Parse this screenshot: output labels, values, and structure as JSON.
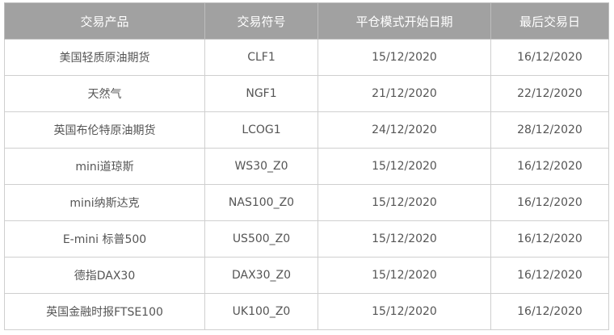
{
  "table": {
    "headers": [
      "交易产品",
      "交易符号",
      "平仓模式开始日期",
      "最后交易日"
    ],
    "rows": [
      [
        "美国轻质原油期货",
        "CLF1",
        "15/12/2020",
        "16/12/2020"
      ],
      [
        "天然气",
        "NGF1",
        "21/12/2020",
        "22/12/2020"
      ],
      [
        "英国布伦特原油期货",
        "LCOG1",
        "24/12/2020",
        "28/12/2020"
      ],
      [
        "mini道琼斯",
        "WS30_Z0",
        "15/12/2020",
        "16/12/2020"
      ],
      [
        "mini纳斯达克",
        "NAS100_Z0",
        "15/12/2020",
        "16/12/2020"
      ],
      [
        "E-mini 标普500",
        "US500_Z0",
        "15/12/2020",
        "16/12/2020"
      ],
      [
        "德指DAX30",
        "DAX30_Z0",
        "15/12/2020",
        "16/12/2020"
      ],
      [
        "英国金融时报FTSE100",
        "UK100_Z0",
        "15/12/2020",
        "16/12/2020"
      ]
    ]
  },
  "colors": {
    "header_bg": "#a1a1a1",
    "header_text": "#ffffff",
    "cell_text": "#555555",
    "border": "#cfcfcf"
  }
}
